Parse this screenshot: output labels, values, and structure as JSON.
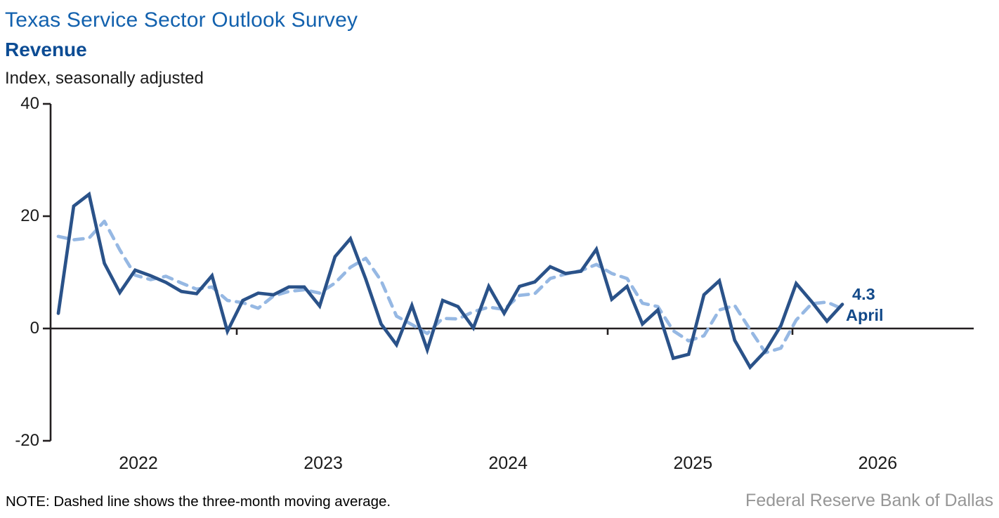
{
  "header": {
    "title": "Texas Service Sector Outlook Survey",
    "subtitle": "Revenue",
    "units_label": "Index, seasonally adjusted",
    "title_color": "#1261ae",
    "subtitle_color": "#0c4c94"
  },
  "annotation": {
    "value": "4.3",
    "month": "April",
    "color": "#134a8a"
  },
  "footer": {
    "note": "NOTE: Dashed line shows the three-month moving average.",
    "attribution": "Federal Reserve Bank of Dallas"
  },
  "colors": {
    "axis": "#231f20",
    "solid_line": "#2a5289",
    "dashed_line": "#96b8e3"
  },
  "chart_data": {
    "type": "line",
    "title": "Texas Service Sector Outlook Survey — Revenue",
    "ylabel": "Index, seasonally adjusted",
    "xlabel": "",
    "ylim": [
      -20,
      40
    ],
    "yticks": [
      40,
      20,
      0,
      -20
    ],
    "year_labels": [
      "2022",
      "2023",
      "2024",
      "2025",
      "2026"
    ],
    "grid": false,
    "legend_position": "none",
    "months": [
      "Jan 2022",
      "Feb 2022",
      "Mar 2022",
      "Apr 2022",
      "May 2022",
      "Jun 2022",
      "Jul 2022",
      "Aug 2022",
      "Sep 2022",
      "Oct 2022",
      "Nov 2022",
      "Dec 2022",
      "Jan 2023",
      "Feb 2023",
      "Mar 2023",
      "Apr 2023",
      "May 2023",
      "Jun 2023",
      "Jul 2023",
      "Aug 2023",
      "Sep 2023",
      "Oct 2023",
      "Nov 2023",
      "Dec 2023",
      "Jan 2024",
      "Feb 2024",
      "Mar 2024",
      "Apr 2024",
      "May 2024",
      "Jun 2024",
      "Jul 2024",
      "Aug 2024",
      "Sep 2024",
      "Oct 2024",
      "Nov 2024",
      "Dec 2024",
      "Jan 2025",
      "Feb 2025",
      "Mar 2025",
      "Apr 2025",
      "May 2025",
      "Jun 2025",
      "Jul 2025",
      "Aug 2025",
      "Sep 2025",
      "Oct 2025",
      "Nov 2025",
      "Dec 2025",
      "Jan 2026",
      "Feb 2026",
      "Mar 2026",
      "Apr 2026"
    ],
    "series": [
      {
        "name": "Revenue index (monthly)",
        "style": "solid",
        "color": "#2a5289",
        "values": [
          2.7,
          21.8,
          23.9,
          11.6,
          6.4,
          10.4,
          9.4,
          8.2,
          6.6,
          6.2,
          9.4,
          -0.5,
          5.0,
          6.3,
          6.0,
          7.4,
          7.4,
          4.0,
          12.8,
          16.0,
          8.8,
          0.8,
          -2.9,
          4.1,
          -3.8,
          5.0,
          3.9,
          0.1,
          7.5,
          2.7,
          7.5,
          8.3,
          11.0,
          9.8,
          10.2,
          14.1,
          5.2,
          7.5,
          0.8,
          3.3,
          -5.3,
          -4.6,
          6.0,
          8.5,
          -2.1,
          -6.9,
          -4.0,
          0.5,
          8.0,
          4.8,
          1.3,
          4.3
        ]
      },
      {
        "name": "Three-month moving average",
        "style": "dashed",
        "color": "#96b8e3",
        "values": [
          16.4,
          15.8,
          16.1,
          19.1,
          14.0,
          9.5,
          8.7,
          9.3,
          8.1,
          7.0,
          7.4,
          5.0,
          4.6,
          3.6,
          5.8,
          6.6,
          6.9,
          6.3,
          8.1,
          10.9,
          12.5,
          8.5,
          2.2,
          0.7,
          -0.9,
          1.8,
          1.7,
          3.0,
          3.8,
          3.4,
          5.9,
          6.2,
          8.9,
          9.7,
          10.3,
          11.4,
          9.8,
          8.9,
          4.5,
          3.9,
          -0.4,
          -2.2,
          -1.3,
          3.3,
          4.1,
          -0.2,
          -4.3,
          -3.5,
          1.5,
          4.4,
          4.7,
          3.5
        ]
      }
    ],
    "last_point": {
      "label": "April",
      "value": 4.3
    }
  }
}
